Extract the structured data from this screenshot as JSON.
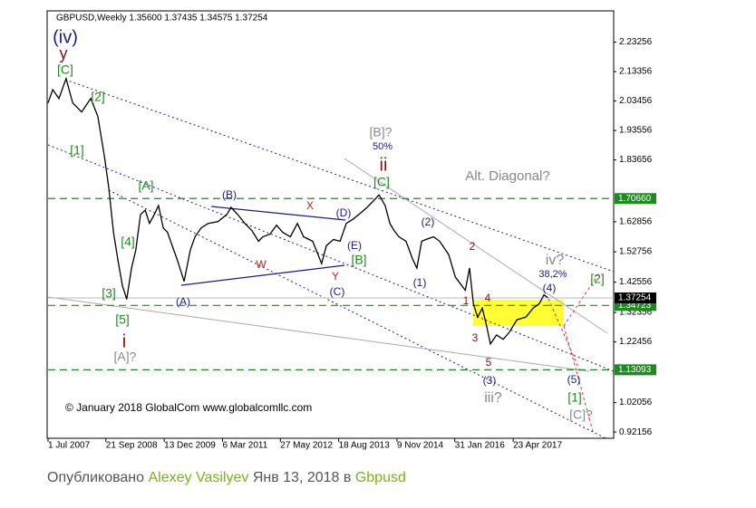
{
  "chart_data": {
    "type": "line",
    "header": "GBPUSD,Weekly  1.35600 1.37435 1.34575 1.37254",
    "copyright": "© January 2018 GlobalCom www.globalcomllc.com",
    "series": [
      {
        "name": "GBPUSD",
        "color": "#000000",
        "x": [
          2007.5,
          2007.6,
          2007.73,
          2007.88,
          2008.02,
          2008.21,
          2008.4,
          2008.55,
          2008.69,
          2008.78,
          2008.88,
          2008.97,
          2009.07,
          2009.16,
          2009.26,
          2009.35,
          2009.45,
          2009.55,
          2009.64,
          2009.74,
          2009.83,
          2009.93,
          2010.02,
          2010.12,
          2010.22,
          2010.31,
          2010.37,
          2010.5,
          2010.6,
          2010.73,
          2010.88,
          2011.08,
          2011.27,
          2011.36,
          2011.5,
          2011.65,
          2011.8,
          2011.94,
          2012.03,
          2012.18,
          2012.32,
          2012.45,
          2012.61,
          2012.76,
          2012.89,
          2013.08,
          2013.18,
          2013.27,
          2013.37,
          2013.52,
          2013.66,
          2013.79,
          2013.94,
          2014.1,
          2014.23,
          2014.36,
          2014.48,
          2014.61,
          2014.71,
          2014.8,
          2014.9,
          2015.05,
          2015.19,
          2015.28,
          2015.38,
          2015.47,
          2015.63,
          2015.76,
          2015.95,
          2016.09,
          2016.2,
          2016.3,
          2016.39,
          2016.47,
          2016.56,
          2016.66,
          2016.75,
          2016.83,
          2016.96,
          2017.1,
          2017.23,
          2017.39,
          2017.58,
          2017.73,
          2017.86,
          2017.96,
          2018.04
        ],
        "values": [
          2.028,
          2.073,
          2.043,
          2.11,
          2.028,
          1.998,
          2.043,
          1.983,
          1.848,
          1.743,
          1.593,
          1.503,
          1.413,
          1.368,
          1.473,
          1.533,
          1.653,
          1.668,
          1.623,
          1.653,
          1.683,
          1.608,
          1.593,
          1.548,
          1.503,
          1.458,
          1.428,
          1.533,
          1.578,
          1.608,
          1.623,
          1.629,
          1.653,
          1.677,
          1.653,
          1.623,
          1.599,
          1.563,
          1.578,
          1.587,
          1.617,
          1.593,
          1.578,
          1.623,
          1.578,
          1.563,
          1.524,
          1.488,
          1.548,
          1.569,
          1.563,
          1.623,
          1.638,
          1.659,
          1.677,
          1.698,
          1.719,
          1.683,
          1.623,
          1.599,
          1.578,
          1.563,
          1.503,
          1.473,
          1.563,
          1.569,
          1.578,
          1.563,
          1.518,
          1.443,
          1.419,
          1.398,
          1.473,
          1.353,
          1.308,
          1.338,
          1.278,
          1.218,
          1.248,
          1.233,
          1.257,
          1.299,
          1.308,
          1.338,
          1.353,
          1.383,
          1.373
        ]
      }
    ],
    "xlim": [
      2007.5,
      2019.43
    ],
    "xticks": [
      {
        "value": 2007.5,
        "label": "1 Jul 2007"
      },
      {
        "value": 2008.72,
        "label": "21 Sep 2008"
      },
      {
        "value": 2009.95,
        "label": "13 Dec 2009"
      },
      {
        "value": 2011.18,
        "label": "6 Mar 2011"
      },
      {
        "value": 2012.4,
        "label": "27 May 2012"
      },
      {
        "value": 2013.63,
        "label": "18 Aug 2013"
      },
      {
        "value": 2014.86,
        "label": "9 Nov 2014"
      },
      {
        "value": 2016.08,
        "label": "31 Jan 2016"
      },
      {
        "value": 2017.31,
        "label": "23 Apr 2017"
      }
    ],
    "ylim": [
      0.9006,
      2.3377
    ],
    "yticks": [
      2.23256,
      2.13356,
      2.03456,
      1.93556,
      1.83656,
      1.62856,
      1.52756,
      1.42556,
      1.32356,
      1.22456,
      1.02056,
      0.92156
    ],
    "hlines": [
      {
        "value": 1.7066,
        "label": "1.70660"
      },
      1.34723,
      1.13093
    ],
    "hline_color": "#1f8a1f",
    "last_price": 1.37254,
    "annotations": [
      {
        "text": "(iv)",
        "color": "#1b1b8a"
      },
      {
        "text": "y",
        "color": "#8b1010"
      },
      {
        "text": "[C]",
        "color": "#1f8a1f"
      },
      {
        "text": "[2]",
        "color": "#1f8a1f"
      },
      {
        "text": "[1]",
        "color": "#1f8a1f"
      },
      {
        "text": "[A]",
        "color": "#1f8a1f"
      },
      {
        "text": "[4]",
        "color": "#1f8a1f"
      },
      {
        "text": "[3]",
        "color": "#1f8a1f"
      },
      {
        "text": "[5]",
        "color": "#1f8a1f"
      },
      {
        "text": "i",
        "color": "#8b1010"
      },
      {
        "text": "[A]?",
        "color": "#888888"
      },
      {
        "text": "(A)",
        "color": "#1b1b8a"
      },
      {
        "text": "(B)",
        "color": "#1b1b8a"
      },
      {
        "text": "X",
        "color": "#c02020"
      },
      {
        "text": "(D)",
        "color": "#1b1b8a"
      },
      {
        "text": "W",
        "color": "#c02020"
      },
      {
        "text": "(E)",
        "color": "#1b1b8a"
      },
      {
        "text": "[B]",
        "color": "#1f8a1f"
      },
      {
        "text": "Y",
        "color": "#c02020"
      },
      {
        "text": "(C)",
        "color": "#1b1b8a"
      },
      {
        "text": "[B]?",
        "color": "#888888"
      },
      {
        "text": "50%",
        "color": "#1b1b8a"
      },
      {
        "text": "ii",
        "color": "#8b1010"
      },
      {
        "text": "[C]",
        "color": "#1f8a1f"
      },
      {
        "text": "(2)",
        "color": "#1b1b8a"
      },
      {
        "text": "(1)",
        "color": "#1b1b8a"
      },
      {
        "text": "Alt. Diagonal?",
        "color": "#888888"
      },
      {
        "text": "2",
        "color": "#8b1010"
      },
      {
        "text": "1",
        "color": "#8b1010"
      },
      {
        "text": "4",
        "color": "#8b1010"
      },
      {
        "text": "3",
        "color": "#8b1010"
      },
      {
        "text": "5",
        "color": "#8b1010"
      },
      {
        "text": "(3)",
        "color": "#1b1b8a"
      },
      {
        "text": "iii?",
        "color": "#888888"
      },
      {
        "text": "iv?",
        "color": "#888888"
      },
      {
        "text": "38,2%",
        "color": "#1b1b8a"
      },
      {
        "text": "(4)",
        "color": "#1b1b8a"
      },
      {
        "text": "[2]",
        "color": "#1f8a1f"
      },
      {
        "text": "(5)",
        "color": "#1b1b8a"
      },
      {
        "text": "[1]",
        "color": "#1f8a1f"
      },
      {
        "text": "[C]?",
        "color": "#888888"
      }
    ]
  },
  "footer": {
    "prefix": "Опубликовано",
    "author": "Alexey Vasilyev",
    "date": "Янв 13, 2018 в",
    "topic": "Gbpusd"
  }
}
